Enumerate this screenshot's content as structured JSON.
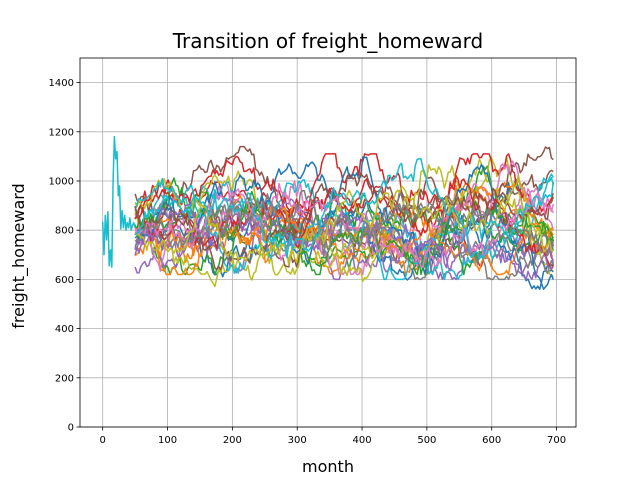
{
  "chart_data": {
    "type": "line",
    "title": "Transition of freight_homeward",
    "xlabel": "month",
    "ylabel": "freight_homeward",
    "xlim": [
      -35,
      730
    ],
    "ylim": [
      0,
      1500
    ],
    "x_ticks": [
      0,
      100,
      200,
      300,
      400,
      500,
      600,
      700
    ],
    "y_ticks": [
      0,
      200,
      400,
      600,
      800,
      1000,
      1200,
      1400
    ],
    "grid": true,
    "legend": "none",
    "common_prefix": {
      "x": [
        0,
        2,
        4,
        6,
        8,
        10,
        12,
        14,
        16,
        18,
        20,
        22,
        24,
        26,
        28,
        30,
        32,
        34,
        36,
        38,
        40,
        42,
        44,
        46,
        48,
        50
      ],
      "y": [
        835,
        700,
        860,
        760,
        875,
        655,
        720,
        650,
        1000,
        1180,
        1090,
        1120,
        940,
        980,
        805,
        880,
        810,
        860,
        800,
        830,
        810,
        850,
        800,
        820,
        830,
        810
      ]
    },
    "prefix_color": "#17becf",
    "series_count": 30,
    "x_end": 695,
    "series_summary": [
      {
        "color": "#1f77b4",
        "start": 760,
        "end": 620,
        "min": 560,
        "max": 1140
      },
      {
        "color": "#ff7f0e",
        "start": 720,
        "end": 760,
        "min": 620,
        "max": 1000
      },
      {
        "color": "#2ca02c",
        "start": 800,
        "end": 700,
        "min": 620,
        "max": 1060
      },
      {
        "color": "#d62728",
        "start": 820,
        "end": 840,
        "min": 640,
        "max": 1110
      },
      {
        "color": "#9467bd",
        "start": 700,
        "end": 660,
        "min": 600,
        "max": 980
      },
      {
        "color": "#8c564b",
        "start": 880,
        "end": 960,
        "min": 640,
        "max": 1140
      },
      {
        "color": "#e377c2",
        "start": 760,
        "end": 820,
        "min": 620,
        "max": 1130
      },
      {
        "color": "#7f7f7f",
        "start": 740,
        "end": 680,
        "min": 600,
        "max": 960
      },
      {
        "color": "#bcbd22",
        "start": 900,
        "end": 640,
        "min": 550,
        "max": 1100
      },
      {
        "color": "#17becf",
        "start": 780,
        "end": 1080,
        "min": 600,
        "max": 1090
      }
    ]
  },
  "colors": {
    "palette": [
      "#1f77b4",
      "#ff7f0e",
      "#2ca02c",
      "#d62728",
      "#9467bd",
      "#8c564b",
      "#e377c2",
      "#7f7f7f",
      "#bcbd22",
      "#17becf"
    ],
    "grid": "#b0b0b0",
    "axis": "#000000",
    "background": "#ffffff"
  }
}
